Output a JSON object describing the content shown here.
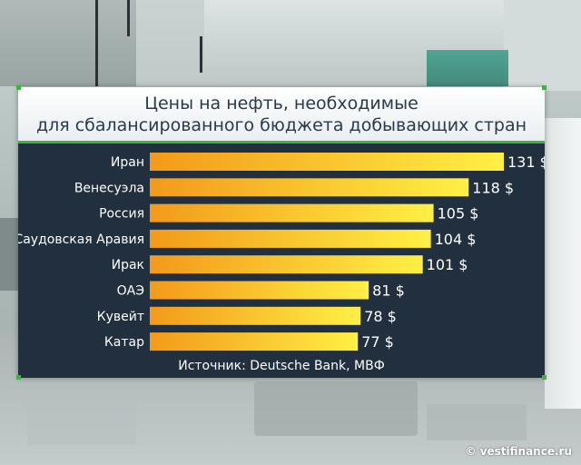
{
  "chart_data": {
    "type": "bar",
    "orientation": "horizontal",
    "title": "Цены на нефть, необходимые для сбалансированного бюджета добывающих стран",
    "title_lines": [
      "Цены на нефть, необходимые",
      "для сбалансированного бюджета добывающих стран"
    ],
    "categories": [
      "Иран",
      "Венесуэла",
      "Россия",
      "Саудовская Аравия",
      "Ирак",
      "ОАЭ",
      "Кувейт",
      "Катар"
    ],
    "values": [
      131,
      118,
      105,
      104,
      101,
      81,
      78,
      77
    ],
    "value_labels": [
      "131 $",
      "118 $",
      "105 $",
      "104 $",
      "101 $",
      "81 $",
      "78 $",
      "77 $"
    ],
    "unit": "$",
    "xlim": [
      0,
      131
    ],
    "grid": false,
    "bar_color": "#f7b21e",
    "bar_color_light": "#fff04a",
    "source": "Источник: Deutsche Bank, МВФ"
  },
  "watermark": "© vestifinance.ru",
  "colors": {
    "panel": "#222f3f",
    "accent": "#3fb23f",
    "text": "#ffffff"
  }
}
